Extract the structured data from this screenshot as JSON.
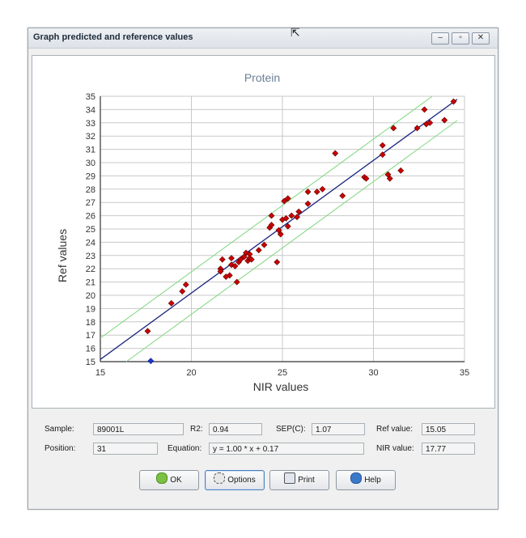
{
  "window": {
    "title": "Graph predicted and reference values",
    "buttons": [
      "–",
      "▫",
      "✕"
    ]
  },
  "chart_data": {
    "type": "scatter",
    "title": "Protein",
    "xlabel": "NIR values",
    "ylabel": "Ref values",
    "xlim": [
      15,
      35
    ],
    "ylim": [
      15,
      35
    ],
    "xticks": [
      15,
      20,
      25,
      30,
      35
    ],
    "yticks": [
      15,
      16,
      17,
      18,
      19,
      20,
      21,
      22,
      23,
      24,
      25,
      26,
      27,
      28,
      29,
      30,
      31,
      32,
      33,
      34,
      35
    ],
    "regression": {
      "slope": 1.0,
      "intercept": 0.17,
      "band": 1.6
    },
    "colors": {
      "points": "#cc0000",
      "selected": "#1a35cc",
      "fit": "#1a237e",
      "band": "#7ed67e"
    },
    "points": [
      [
        17.6,
        17.3
      ],
      [
        18.9,
        19.4
      ],
      [
        19.5,
        20.3
      ],
      [
        19.7,
        20.8
      ],
      [
        21.6,
        22.0
      ],
      [
        21.6,
        21.8
      ],
      [
        21.7,
        22.7
      ],
      [
        21.9,
        21.4
      ],
      [
        22.1,
        21.5
      ],
      [
        22.2,
        22.3
      ],
      [
        22.2,
        22.8
      ],
      [
        22.4,
        22.2
      ],
      [
        22.5,
        21.0
      ],
      [
        22.6,
        22.5
      ],
      [
        22.7,
        22.7
      ],
      [
        22.9,
        22.9
      ],
      [
        23.0,
        23.2
      ],
      [
        23.1,
        22.6
      ],
      [
        23.2,
        23.1
      ],
      [
        23.2,
        22.8
      ],
      [
        23.3,
        22.7
      ],
      [
        23.7,
        23.4
      ],
      [
        24.0,
        23.8
      ],
      [
        24.3,
        25.1
      ],
      [
        24.4,
        25.3
      ],
      [
        24.4,
        26.0
      ],
      [
        24.7,
        22.5
      ],
      [
        24.8,
        24.9
      ],
      [
        24.9,
        24.6
      ],
      [
        25.0,
        25.7
      ],
      [
        25.1,
        27.1
      ],
      [
        25.2,
        25.8
      ],
      [
        25.3,
        25.2
      ],
      [
        25.3,
        27.3
      ],
      [
        25.5,
        26.0
      ],
      [
        25.8,
        25.9
      ],
      [
        25.9,
        26.3
      ],
      [
        26.4,
        26.9
      ],
      [
        26.4,
        27.8
      ],
      [
        26.9,
        27.8
      ],
      [
        27.2,
        28.0
      ],
      [
        27.9,
        30.7
      ],
      [
        28.3,
        27.5
      ],
      [
        29.5,
        28.9
      ],
      [
        29.6,
        28.8
      ],
      [
        30.5,
        31.3
      ],
      [
        30.5,
        30.6
      ],
      [
        30.8,
        29.1
      ],
      [
        30.9,
        28.8
      ],
      [
        31.1,
        32.6
      ],
      [
        31.5,
        29.4
      ],
      [
        32.4,
        32.6
      ],
      [
        32.8,
        34.0
      ],
      [
        32.9,
        32.9
      ],
      [
        33.1,
        33.0
      ],
      [
        33.9,
        33.2
      ],
      [
        34.4,
        34.6
      ]
    ],
    "selected_point": [
      17.77,
      15.05
    ]
  },
  "fields": {
    "sample_label": "Sample:",
    "sample_value": "89001L",
    "r2_label": "R2:",
    "r2_value": "0.94",
    "sep_label": "SEP(C):",
    "sep_value": "1.07",
    "ref_label": "Ref value:",
    "ref_value": "15.05",
    "position_label": "Position:",
    "position_value": "31",
    "equation_label": "Equation:",
    "equation_value": "y = 1.00 * x + 0.17",
    "nir_label": "NIR value:",
    "nir_value": "17.77"
  },
  "buttons": {
    "ok": "OK",
    "options": "Options",
    "print": "Print",
    "help": "Help"
  }
}
